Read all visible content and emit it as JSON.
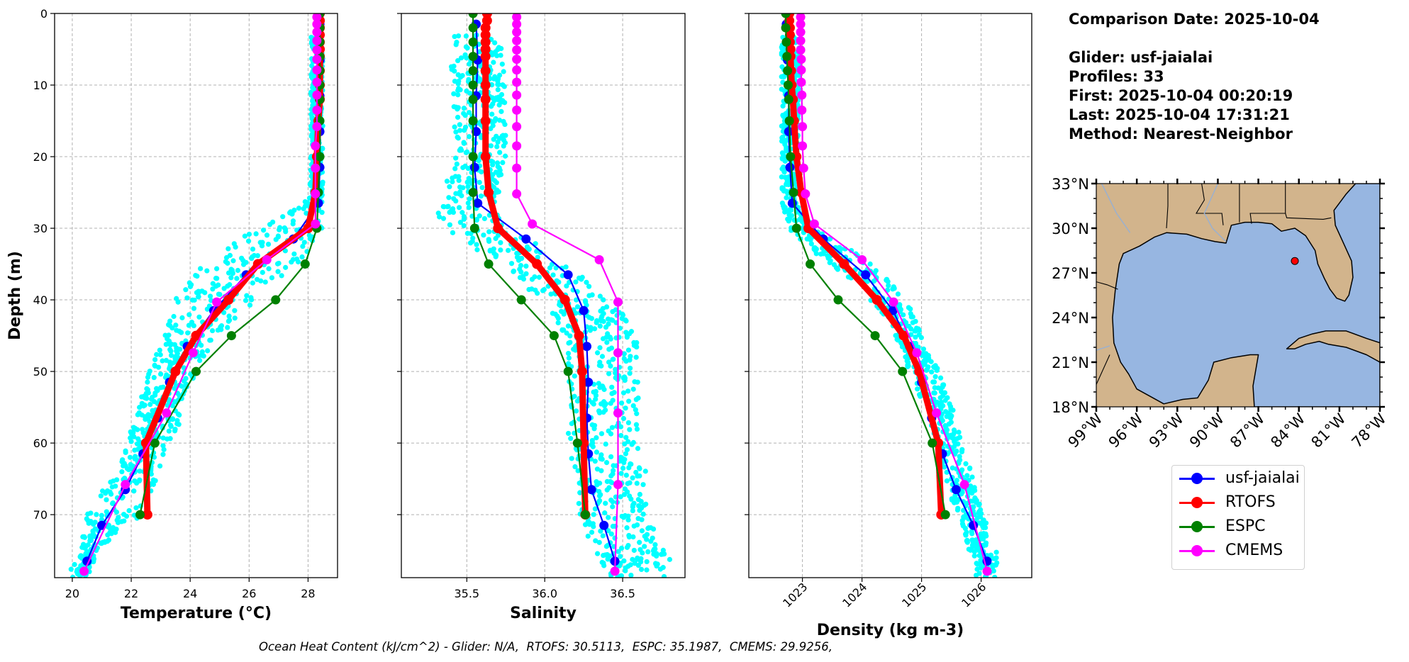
{
  "info": {
    "comparison_date": "Comparison Date: 2025-10-04",
    "glider": "Glider: usf-jaialai",
    "profiles": "Profiles: 33",
    "first": "First: 2025-10-04 00:20:19",
    "last": "Last: 2025-10-04 17:31:21",
    "method": "Method: Nearest-Neighbor"
  },
  "footer": "Ocean Heat Content (kJ/cm^2) - Glider: N/A,  RTOFS: 30.5113,  ESPC: 35.1987,  CMEMS: 29.9256,",
  "legend": [
    {
      "label": "usf-jaialai",
      "color": "#0000ff"
    },
    {
      "label": "RTOFS",
      "color": "#ff0000"
    },
    {
      "label": "ESPC",
      "color": "#008000"
    },
    {
      "label": "CMEMS",
      "color": "#ff00ff"
    }
  ],
  "colors": {
    "glider_scatter": "#00ffff",
    "usf-jaialai": "#0000ff",
    "RTOFS": "#ff0000",
    "ESPC": "#008000",
    "CMEMS": "#ff00ff",
    "grid": "#b0b0b0",
    "land": "#d2b48c",
    "ocean": "#97b6e1"
  },
  "chart_data": [
    {
      "type": "line",
      "title": "",
      "xlabel": "Temperature (°C)",
      "ylabel": "Depth (m)",
      "xlim": [
        19.4,
        29.0
      ],
      "ylim": [
        78.8,
        0
      ],
      "xticks": [
        20,
        22,
        24,
        26,
        28
      ],
      "yticks": [
        0,
        10,
        20,
        30,
        40,
        50,
        60,
        70
      ],
      "grid": true,
      "scatter_band": {
        "name": "glider raw",
        "depth": [
          3,
          10,
          20,
          26,
          28,
          30,
          32,
          34,
          36,
          38,
          40,
          42,
          44,
          46,
          48,
          50,
          52,
          54,
          56,
          58,
          60,
          62,
          64,
          66,
          68,
          70,
          72,
          74,
          76,
          78
        ],
        "min": [
          28.1,
          28.1,
          28.1,
          28.0,
          27.3,
          26.4,
          25.2,
          24.6,
          24.2,
          23.8,
          23.5,
          23.4,
          23.2,
          23.0,
          22.8,
          22.6,
          22.5,
          22.3,
          22.2,
          22.0,
          21.9,
          21.7,
          21.4,
          21.1,
          20.8,
          20.5,
          20.4,
          20.3,
          20.2,
          19.9
        ],
        "max": [
          28.5,
          28.5,
          28.5,
          28.5,
          28.5,
          28.5,
          28.3,
          28.1,
          27.4,
          26.8,
          26.2,
          25.8,
          25.3,
          24.8,
          24.5,
          24.2,
          24.0,
          23.8,
          23.7,
          23.6,
          23.3,
          23.1,
          22.9,
          22.8,
          22.5,
          22.4,
          21.6,
          21.2,
          20.8,
          20.6
        ]
      },
      "series": [
        {
          "name": "usf-jaialai",
          "depth": [
            1.5,
            6.5,
            11.5,
            16.5,
            21.5,
            26.5,
            31.5,
            36.5,
            41.5,
            46.5,
            51.5,
            56.5,
            61.5,
            66.5,
            71.5,
            76.5
          ],
          "values": [
            28.4,
            28.4,
            28.4,
            28.4,
            28.4,
            28.35,
            27.5,
            25.9,
            24.8,
            23.9,
            23.3,
            22.9,
            22.4,
            21.8,
            21.0,
            20.5
          ]
        },
        {
          "name": "RTOFS",
          "depth": [
            0,
            1,
            2,
            3,
            4,
            5,
            6,
            8,
            10,
            12,
            15,
            20,
            25,
            30,
            35,
            40,
            45,
            50,
            60,
            70
          ],
          "values": [
            28.4,
            28.4,
            28.4,
            28.4,
            28.4,
            28.4,
            28.4,
            28.4,
            28.4,
            28.4,
            28.35,
            28.3,
            28.25,
            28.0,
            26.3,
            25.3,
            24.2,
            23.5,
            22.5,
            22.55
          ]
        },
        {
          "name": "ESPC",
          "depth": [
            0,
            2,
            4,
            6,
            8,
            10,
            12,
            15,
            20,
            25,
            30,
            35,
            40,
            45,
            50,
            60,
            70
          ],
          "values": [
            28.4,
            28.4,
            28.4,
            28.4,
            28.4,
            28.4,
            28.4,
            28.4,
            28.4,
            28.35,
            28.3,
            27.9,
            26.9,
            25.4,
            24.2,
            22.8,
            22.3
          ]
        },
        {
          "name": "CMEMS",
          "depth": [
            0.5,
            1.5,
            2.6,
            3.8,
            5.1,
            6.4,
            7.9,
            9.6,
            11.4,
            13.5,
            15.8,
            18.5,
            21.6,
            25.2,
            29.4,
            34.4,
            40.3,
            47.4,
            55.8,
            65.8,
            77.9
          ],
          "values": [
            28.3,
            28.3,
            28.3,
            28.3,
            28.3,
            28.3,
            28.3,
            28.3,
            28.3,
            28.3,
            28.3,
            28.25,
            28.25,
            28.25,
            28.25,
            26.6,
            24.9,
            24.1,
            23.2,
            21.8,
            20.4
          ]
        }
      ]
    },
    {
      "type": "line",
      "title": "",
      "xlabel": "Salinity",
      "ylabel": "",
      "xlim": [
        35.08,
        36.9
      ],
      "ylim": [
        78.8,
        0
      ],
      "xticks": [
        35.5,
        36.0,
        36.5
      ],
      "yticks": [
        0,
        10,
        20,
        30,
        40,
        50,
        60,
        70
      ],
      "grid": true,
      "scatter_band": {
        "name": "glider raw",
        "depth": [
          3,
          10,
          20,
          26,
          28,
          30,
          32,
          34,
          36,
          38,
          40,
          42,
          44,
          46,
          48,
          50,
          52,
          54,
          56,
          58,
          60,
          62,
          64,
          66,
          68,
          70,
          72,
          74,
          76,
          78
        ],
        "min": [
          35.4,
          35.4,
          35.4,
          35.35,
          35.3,
          35.35,
          35.5,
          35.6,
          35.75,
          35.85,
          35.95,
          36.05,
          36.1,
          36.15,
          36.15,
          36.15,
          36.15,
          36.15,
          36.15,
          36.15,
          36.15,
          36.15,
          36.2,
          36.2,
          36.2,
          36.2,
          36.25,
          36.3,
          36.35,
          36.4
        ]
      },
      "series": [
        {
          "name": "usf-jaialai",
          "depth": [
            1.5,
            6.5,
            11.5,
            16.5,
            21.5,
            26.5,
            31.5,
            36.5,
            41.5,
            46.5,
            51.5,
            56.5,
            61.5,
            66.5,
            71.5,
            76.5
          ],
          "values": [
            35.56,
            35.57,
            35.56,
            35.56,
            35.55,
            35.57,
            35.88,
            36.15,
            36.25,
            36.27,
            36.28,
            36.27,
            36.28,
            36.3,
            36.38,
            36.45
          ]
        },
        {
          "name": "RTOFS",
          "depth": [
            0,
            1,
            2,
            3,
            4,
            5,
            6,
            8,
            10,
            12,
            15,
            20,
            25,
            30,
            35,
            40,
            45,
            50,
            60,
            70
          ],
          "values": [
            35.63,
            35.63,
            35.62,
            35.62,
            35.62,
            35.62,
            35.62,
            35.62,
            35.62,
            35.62,
            35.62,
            35.62,
            35.64,
            35.7,
            35.95,
            36.13,
            36.22,
            36.24,
            36.25,
            36.26
          ]
        },
        {
          "name": "ESPC",
          "depth": [
            0,
            2,
            4,
            6,
            8,
            10,
            12,
            15,
            20,
            25,
            30,
            35,
            40,
            45,
            50,
            60,
            70
          ],
          "values": [
            35.54,
            35.54,
            35.54,
            35.54,
            35.54,
            35.54,
            35.54,
            35.54,
            35.54,
            35.54,
            35.55,
            35.64,
            35.85,
            36.06,
            36.15,
            36.21,
            36.26
          ]
        },
        {
          "name": "CMEMS",
          "depth": [
            0.5,
            1.5,
            2.6,
            3.8,
            5.1,
            6.4,
            7.9,
            9.6,
            11.4,
            13.5,
            15.8,
            18.5,
            21.6,
            25.2,
            29.4,
            34.4,
            40.3,
            47.4,
            55.8,
            65.8,
            77.9
          ],
          "values": [
            35.82,
            35.82,
            35.82,
            35.82,
            35.82,
            35.82,
            35.82,
            35.82,
            35.82,
            35.82,
            35.82,
            35.82,
            35.82,
            35.82,
            35.92,
            36.35,
            36.47,
            36.47,
            36.47,
            36.47,
            36.45
          ]
        }
      ]
    },
    {
      "type": "line",
      "title": "",
      "xlabel": "Density (kg m-3)",
      "ylabel": "",
      "xlim": [
        1022.1,
        1026.85
      ],
      "ylim": [
        78.8,
        0
      ],
      "xticks": [
        1023,
        1024,
        1025,
        1026
      ],
      "yticks": [
        0,
        10,
        20,
        30,
        40,
        50,
        60,
        70
      ],
      "grid": true,
      "scatter_band": {
        "name": "glider raw",
        "depth": [
          3,
          10,
          20,
          26,
          28,
          30,
          32,
          34,
          36,
          38,
          40,
          42,
          44,
          46,
          48,
          50,
          52,
          54,
          56,
          58,
          60,
          62,
          64,
          66,
          68,
          70,
          72,
          74,
          76,
          78
        ],
        "min": [
          1022.65,
          1022.65,
          1022.65,
          1022.65,
          1022.7,
          1022.75,
          1023.0,
          1023.3,
          1023.6,
          1023.9,
          1024.1,
          1024.3,
          1024.5,
          1024.6,
          1024.7,
          1024.8,
          1024.9,
          1025.0,
          1025.1,
          1025.15,
          1025.2,
          1025.3,
          1025.35,
          1025.45,
          1025.5,
          1025.6,
          1025.7,
          1025.75,
          1025.85,
          1025.9
        ],
        "max": [
          1022.95,
          1022.95,
          1022.95,
          1022.95,
          1023.0,
          1023.2,
          1023.6,
          1024.0,
          1024.3,
          1024.55,
          1024.75,
          1024.85,
          1024.95,
          1025.05,
          1025.15,
          1025.3,
          1025.4,
          1025.5,
          1025.55,
          1025.6,
          1025.7,
          1025.8,
          1025.85,
          1025.9,
          1025.95,
          1026.05,
          1026.15,
          1026.2,
          1026.3,
          1026.25
        ]
      },
      "series": [
        {
          "name": "usf-jaialai",
          "depth": [
            1.5,
            6.5,
            11.5,
            16.5,
            21.5,
            26.5,
            31.5,
            36.5,
            41.5,
            46.5,
            51.5,
            56.5,
            61.5,
            66.5,
            71.5,
            76.5
          ],
          "values": [
            1022.73,
            1022.75,
            1022.77,
            1022.77,
            1022.79,
            1022.83,
            1023.35,
            1024.06,
            1024.52,
            1024.8,
            1025.0,
            1025.17,
            1025.35,
            1025.58,
            1025.87,
            1026.1
          ]
        },
        {
          "name": "RTOFS",
          "depth": [
            0,
            1,
            2,
            3,
            4,
            5,
            6,
            8,
            10,
            12,
            15,
            20,
            25,
            30,
            35,
            40,
            45,
            50,
            60,
            70
          ],
          "values": [
            1022.78,
            1022.78,
            1022.79,
            1022.79,
            1022.79,
            1022.8,
            1022.8,
            1022.81,
            1022.82,
            1022.84,
            1022.86,
            1022.9,
            1022.98,
            1023.1,
            1023.7,
            1024.25,
            1024.7,
            1024.96,
            1025.28,
            1025.33
          ]
        },
        {
          "name": "ESPC",
          "depth": [
            0,
            2,
            4,
            6,
            8,
            10,
            12,
            15,
            20,
            25,
            30,
            35,
            40,
            45,
            50,
            60,
            70
          ],
          "values": [
            1022.72,
            1022.72,
            1022.73,
            1022.74,
            1022.75,
            1022.76,
            1022.77,
            1022.78,
            1022.8,
            1022.85,
            1022.9,
            1023.13,
            1023.6,
            1024.22,
            1024.68,
            1025.18,
            1025.4
          ]
        },
        {
          "name": "CMEMS",
          "depth": [
            0.5,
            1.5,
            2.6,
            3.8,
            5.1,
            6.4,
            7.9,
            9.6,
            11.4,
            13.5,
            15.8,
            18.5,
            21.6,
            25.2,
            29.4,
            34.4,
            40.3,
            47.4,
            55.8,
            65.8,
            77.9
          ],
          "values": [
            1022.97,
            1022.97,
            1022.97,
            1022.97,
            1022.97,
            1022.98,
            1022.98,
            1022.98,
            1022.99,
            1022.99,
            1023.0,
            1023.0,
            1023.02,
            1023.05,
            1023.2,
            1024.0,
            1024.53,
            1024.92,
            1025.25,
            1025.72,
            1026.1
          ]
        }
      ]
    },
    {
      "type": "map",
      "region": "Gulf of Mexico",
      "lon_range": [
        -99,
        -78
      ],
      "lat_range": [
        18,
        33
      ],
      "xticks": [
        "99°W",
        "96°W",
        "93°W",
        "90°W",
        "87°W",
        "84°W",
        "81°W",
        "78°W"
      ],
      "yticks": [
        "33°N",
        "30°N",
        "27°N",
        "24°N",
        "21°N",
        "18°N"
      ],
      "marker": {
        "lon": -84.3,
        "lat": 27.8,
        "color": "#ff0000"
      }
    }
  ]
}
